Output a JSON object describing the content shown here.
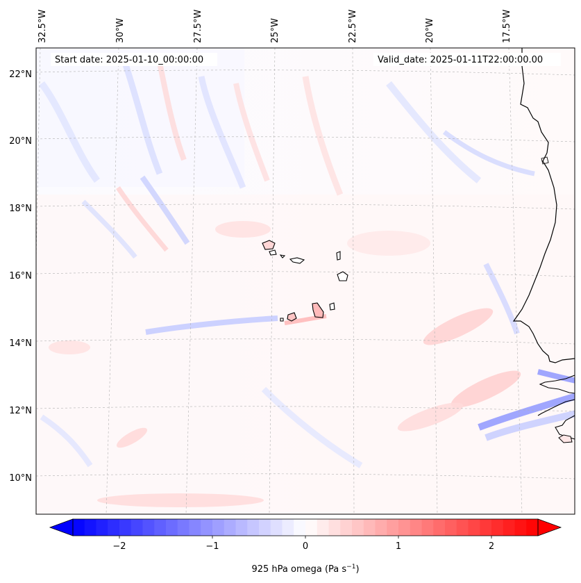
{
  "map": {
    "start_label": "Start date: 2025-01-10_00:00:00",
    "valid_label": "Valid_date: 2025-01-11T22:00:00.00",
    "lon_labels": [
      "32.5°W",
      "30°W",
      "27.5°W",
      "25°W",
      "22.5°W",
      "20°W",
      "17.5°W"
    ],
    "lat_labels": [
      "22°N",
      "20°N",
      "18°N",
      "16°N",
      "14°N",
      "12°N",
      "10°N"
    ]
  },
  "colorbar": {
    "title": "925 hPa omega (Pa s",
    "title_exp": "−1",
    "title_end": ")",
    "ticks": [
      "−2",
      "−1",
      "0",
      "1",
      "2"
    ],
    "tick_values": [
      -2,
      -1,
      0,
      1,
      2
    ],
    "vmin": -2.5,
    "vmax": 2.5,
    "cmap": "bwr",
    "colors": {
      "low": "#0000ff",
      "mid": "#ffffff",
      "high": "#ff0000"
    }
  },
  "colors": {
    "coast": "#000000",
    "grid": "#b0b0b0",
    "frame": "#000000"
  }
}
